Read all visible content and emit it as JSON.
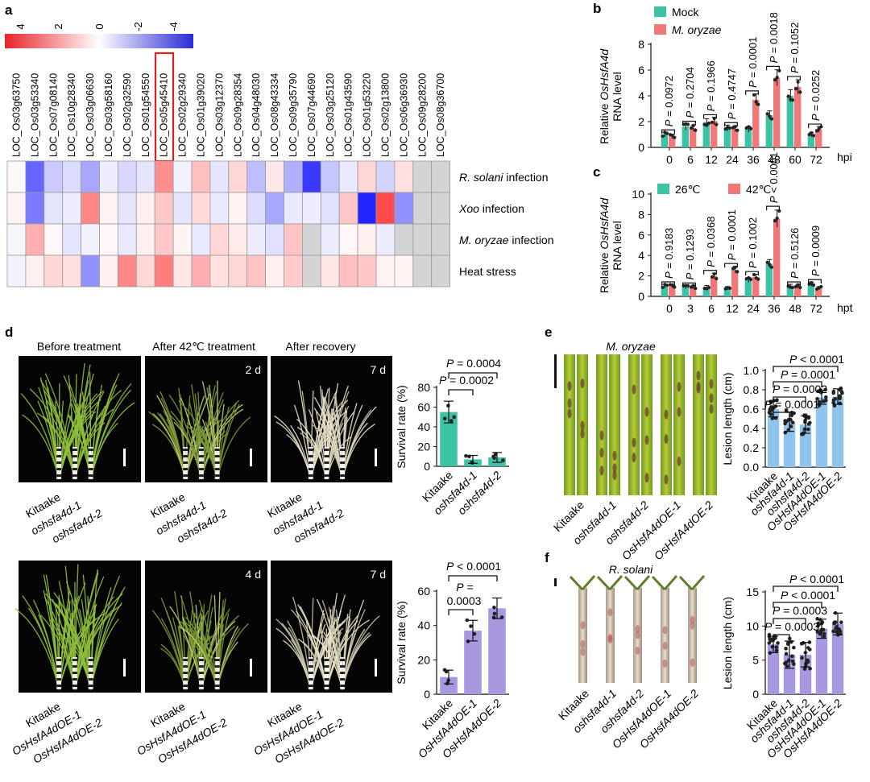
{
  "panels": {
    "a": {
      "label": "a",
      "colorbar": {
        "ticks": [
          "4",
          "2",
          "0",
          "-2",
          "-4"
        ],
        "colors": [
          "#e8242b",
          "#ffffff",
          "#2b2bd6"
        ]
      },
      "genes": [
        "LOC_Os03g63750",
        "LOC_Os03g53340",
        "LOC_Os07g08140",
        "LOC_Os10g28340",
        "LOC_Os03g06630",
        "LOC_Os03g58160",
        "LOC_Os02g32590",
        "LOC_Os01g54550",
        "LOC_Os05g45410",
        "LOC_Os02g29340",
        "LOC_Os01g39020",
        "LOC_Os03g12370",
        "LOC_Os09g28354",
        "LOC_Os04g48030",
        "LOC_Os08g43334",
        "LOC_Os09g35790",
        "LOC_Os07g44690",
        "LOC_Os03g25120",
        "LOC_Os01g43590",
        "LOC_Os01g53220",
        "LOC_Os02g13800",
        "LOC_Os06g36930",
        "LOC_Os09g28200",
        "LOC_Os08g36700"
      ],
      "highlight_gene_index": 8,
      "rows": [
        "R. solani infection",
        "Xoo infection",
        "M. oryzae infection",
        "Heat stress"
      ],
      "row_labels": [
        {
          "italic": "R. solani",
          "rest": " infection"
        },
        {
          "italic": "Xoo",
          "rest": " infection"
        },
        {
          "italic": "M. oryzae",
          "rest": " infection"
        },
        {
          "italic": "",
          "rest": "Heat stress"
        }
      ],
      "heatmap": [
        [
          0.2,
          -3.5,
          -1.2,
          -0.8,
          -2.0,
          -0.4,
          -0.9,
          -0.6,
          2.8,
          -0.3,
          1.6,
          -0.6,
          1.0,
          -1.5,
          0.6,
          -1.8,
          -4.5,
          -1.3,
          -0.5,
          1.0,
          -1.0,
          0.8,
          null,
          null
        ],
        [
          0.3,
          -3.0,
          -0.6,
          -0.4,
          3.0,
          0.3,
          -0.6,
          0.4,
          1.4,
          -0.6,
          0.9,
          -0.5,
          0.3,
          -0.8,
          -2.0,
          -0.5,
          -0.4,
          -0.7,
          1.4,
          -5.0,
          4.5,
          -2.5,
          null,
          null
        ],
        [
          -0.2,
          2.0,
          0.2,
          -0.6,
          -0.3,
          0.2,
          -0.5,
          0.4,
          1.4,
          0.3,
          -0.5,
          1.0,
          0.5,
          -0.4,
          -0.7,
          1.5,
          null,
          -0.4,
          0.2,
          0.4,
          -0.4,
          null,
          null,
          null
        ],
        [
          -0.3,
          0.4,
          1.0,
          0.8,
          -2.5,
          0.4,
          3.0,
          1.0,
          3.2,
          0.6,
          2.0,
          0.8,
          1.0,
          1.5,
          0.4,
          1.3,
          null,
          0.6,
          1.6,
          1.4,
          0.3,
          0.3,
          null,
          null
        ]
      ]
    },
    "b": {
      "label": "b",
      "legend": [
        "Mock",
        "M. oryzae"
      ],
      "ylabel_italic": "OsHsfA4d",
      "ylabel_pre": "Relative ",
      "ylabel_line2": "RNA level",
      "xunit": "hpi",
      "pvalues": [
        "P = 0.0972",
        "P = 0.2704",
        "P = 0.1966",
        "P = 0.4747",
        "P = 0.0001",
        "P = 0.0018",
        "P = 0.1052",
        "P = 0.0252"
      ]
    },
    "c": {
      "label": "c",
      "legend": [
        "26℃",
        "42℃"
      ],
      "ylabel_italic": "OsHsfA4d",
      "ylabel_pre": "Relative ",
      "ylabel_line2": "RNA level",
      "xunit": "hpt",
      "pvalues": [
        "P = 0.9183",
        "P = 0.1293",
        "P = 0.0368",
        "P = 0.0001",
        "P = 0.1002",
        "P < 0.0001",
        "P = 0.5126",
        "P = 0.0009"
      ]
    },
    "d": {
      "label": "d",
      "headers": [
        "Before treatment",
        "After 42℃ treatment",
        "After recovery"
      ],
      "top_days": [
        "2 d",
        "7 d"
      ],
      "bottom_days": [
        "4 d",
        "7 d"
      ],
      "top_photo_labels": [
        "Kitaake",
        "oshsfa4d-1",
        "oshsfa4d-2"
      ],
      "bottom_photo_labels": [
        "Kitaake",
        "OsHsfA4dOE-1",
        "OsHsfA4dOE-2"
      ],
      "ylabel": "Survival rate (%)",
      "top_pvalues": [
        "P = 0.0004",
        "P = 0.0002"
      ],
      "bottom_pvalues": [
        "P < 0.0001",
        "P =",
        "0.0003"
      ]
    },
    "e": {
      "label": "e",
      "title": "M. oryzae",
      "ylabel": "Lesion length (cm)",
      "labels": [
        "Kitaake",
        "oshsfa4d-1",
        "oshsfa4d-2",
        "OsHsfA4dOE-1",
        "OsHsfA4dOE-2"
      ],
      "pvalues": [
        "P < 0.0001",
        "P = 0.0001",
        "P = 0.0002",
        "P = 0.0001"
      ]
    },
    "f": {
      "label": "f",
      "title": "R. solani",
      "ylabel": "Lesion length (cm)",
      "labels": [
        "Kitaake",
        "oshsfa4d-1",
        "oshsfa4d-2",
        "OsHsfA4dOE-1",
        "OsHsfA4dOE-2"
      ],
      "pvalues": [
        "P < 0.0001",
        "P < 0.0001",
        "P = 0.0003",
        "P = 0.0003"
      ]
    }
  },
  "colors": {
    "teal": "#3cc3a6",
    "salmon": "#f07878",
    "purple": "#a898e0",
    "blue": "#8fc4ef",
    "photo_bg": "#050505",
    "leaf": "#9ab82a"
  },
  "chart_data": [
    {
      "panel": "b",
      "type": "bar",
      "xlabel": "hpi",
      "ylabel": "Relative OsHsfA4d RNA level",
      "categories": [
        "0",
        "6",
        "12",
        "24",
        "36",
        "48",
        "60",
        "72"
      ],
      "ylim": [
        0,
        8
      ],
      "yticks": [
        0,
        2,
        4,
        6,
        8
      ],
      "series": [
        {
          "name": "Mock",
          "values": [
            1.0,
            1.6,
            1.95,
            1.5,
            1.4,
            2.5,
            4.0,
            1.0
          ]
        },
        {
          "name": "M. oryzae",
          "values": [
            0.85,
            1.5,
            2.05,
            1.45,
            3.7,
            5.4,
            4.7,
            1.4
          ]
        }
      ]
    },
    {
      "panel": "c",
      "type": "bar",
      "xlabel": "hpt",
      "ylabel": "Relative OsHsfA4d RNA level",
      "categories": [
        "0",
        "3",
        "6",
        "12",
        "24",
        "36",
        "48",
        "72"
      ],
      "ylim": [
        0,
        10
      ],
      "yticks": [
        0,
        2,
        4,
        6,
        8,
        10
      ],
      "series": [
        {
          "name": "26℃",
          "values": [
            1.0,
            0.9,
            0.9,
            0.8,
            1.6,
            3.2,
            1.0,
            1.2
          ]
        },
        {
          "name": "42℃",
          "values": [
            1.0,
            0.9,
            2.0,
            2.6,
            1.9,
            7.6,
            1.0,
            0.8
          ]
        }
      ]
    },
    {
      "panel": "d-top",
      "type": "bar",
      "ylabel": "Survival rate (%)",
      "categories": [
        "Kitaake",
        "oshsfa4d-1",
        "oshsfa4d-2"
      ],
      "values": [
        55,
        7,
        9
      ],
      "errors": [
        11,
        4,
        5
      ],
      "ylim": [
        0,
        80
      ],
      "yticks": [
        0,
        20,
        40,
        60,
        80
      ]
    },
    {
      "panel": "d-bottom",
      "type": "bar",
      "ylabel": "Survival rate (%)",
      "categories": [
        "Kitaake",
        "OsHsfA4dOE-1",
        "OsHsfA4dOE-2"
      ],
      "values": [
        10,
        37,
        50
      ],
      "errors": [
        4,
        6,
        6
      ],
      "ylim": [
        0,
        60
      ],
      "yticks": [
        0,
        20,
        40,
        60
      ]
    },
    {
      "panel": "e",
      "type": "bar",
      "ylabel": "Lesion length (cm)",
      "categories": [
        "Kitaake",
        "oshsfa4d-1",
        "oshsfa4d-2",
        "OsHsfA4dOE-1",
        "OsHsfA4dOE-2"
      ],
      "values": [
        0.6,
        0.47,
        0.44,
        0.72,
        0.73
      ],
      "errors": [
        0.08,
        0.1,
        0.09,
        0.07,
        0.08
      ],
      "ylim": [
        0,
        1.0
      ],
      "yticks": [
        0.0,
        0.2,
        0.4,
        0.6,
        0.8,
        1.0
      ]
    },
    {
      "panel": "f",
      "type": "bar",
      "ylabel": "Lesion length (cm)",
      "categories": [
        "Kitaake",
        "oshsfa4d-1",
        "oshsfa4d-2",
        "OsHsfA4dOE-1",
        "OsHsfA4dOE-2"
      ],
      "values": [
        7.3,
        5.8,
        5.8,
        9.6,
        10.3
      ],
      "errors": [
        1.2,
        2.0,
        1.8,
        1.4,
        1.6
      ],
      "ylim": [
        0,
        15
      ],
      "yticks": [
        0,
        5,
        10,
        15
      ]
    }
  ]
}
